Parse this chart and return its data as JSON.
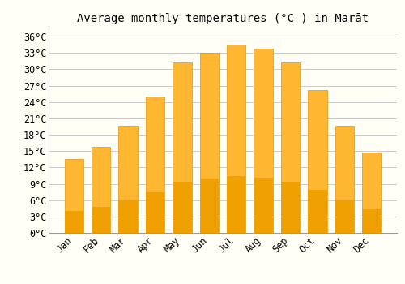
{
  "title": "Average monthly temperatures (°C ) in Marāt",
  "months": [
    "Jan",
    "Feb",
    "Mar",
    "Apr",
    "May",
    "Jun",
    "Jul",
    "Aug",
    "Sep",
    "Oct",
    "Nov",
    "Dec"
  ],
  "values": [
    13.5,
    15.8,
    19.7,
    25.0,
    31.2,
    33.0,
    34.5,
    33.8,
    31.2,
    26.2,
    19.7,
    14.8
  ],
  "bar_color": "#FFA500",
  "bar_edge_color": "#E8920A",
  "background_color": "#FFFFF5",
  "grid_color": "#CCCCCC",
  "yticks": [
    0,
    3,
    6,
    9,
    12,
    15,
    18,
    21,
    24,
    27,
    30,
    33,
    36
  ],
  "ylim": [
    0,
    37.5
  ],
  "font_family": "monospace",
  "title_fontsize": 10,
  "tick_fontsize": 8.5
}
